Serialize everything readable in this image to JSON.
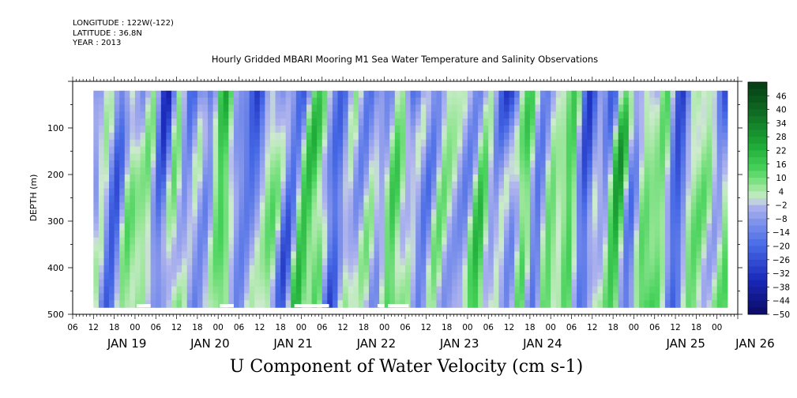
{
  "header": {
    "longitude": "LONGITUDE : 122W(-122)",
    "latitude": "LATITUDE : 36.8N",
    "year": "YEAR : 2013"
  },
  "chart_data": {
    "type": "heatmap",
    "title": "Hourly Gridded MBARI Mooring M1 Sea Water Temperature and Salinity Observations",
    "xlabel": "U Component of Water Velocity (cm s-1)",
    "ylabel": "DEPTH (m)",
    "x_range_hours_since_jan19_00": [
      -18,
      174
    ],
    "data_start_hour": -12,
    "data_end_hour": 171,
    "ylim": [
      500,
      0
    ],
    "data_depth_range": [
      20,
      485
    ],
    "y_ticks": [
      "100",
      "200",
      "300",
      "400",
      "500"
    ],
    "x_hour_ticks": [
      "06",
      "12",
      "18",
      "00",
      "06",
      "12",
      "18",
      "00",
      "06",
      "12",
      "18",
      "00",
      "06",
      "12",
      "18",
      "00",
      "06",
      "12",
      "18",
      "00",
      "06",
      "12",
      "18",
      "00",
      "06",
      "12",
      "18",
      "00",
      "06",
      "12",
      "18",
      "00"
    ],
    "x_day_labels": [
      "JAN 19",
      "JAN 20",
      "JAN 21",
      "JAN 22",
      "JAN 23",
      "JAN 24",
      "JAN 25",
      "JAN 26"
    ],
    "colorbar": {
      "labels": [
        "46",
        "40",
        "34",
        "28",
        "22",
        "16",
        "10",
        "4",
        "-2",
        "-8",
        "-14",
        "-20",
        "-26",
        "-32",
        "-38",
        "-44",
        "-50"
      ],
      "min": -50,
      "max": 52,
      "step": 3
    },
    "gaps": [
      {
        "start_hour": 0.5,
        "end_hour": 4.5,
        "depth_from": 478,
        "depth_to": 485
      },
      {
        "start_hour": 24.5,
        "end_hour": 28.5,
        "depth_from": 478,
        "depth_to": 485
      },
      {
        "start_hour": 46,
        "end_hour": 56,
        "depth_from": 478,
        "depth_to": 485
      },
      {
        "start_hour": 70,
        "end_hour": 72,
        "depth_from": 478,
        "depth_to": 485
      },
      {
        "start_hour": 73,
        "end_hour": 79,
        "depth_from": 478,
        "depth_to": 485
      }
    ]
  }
}
